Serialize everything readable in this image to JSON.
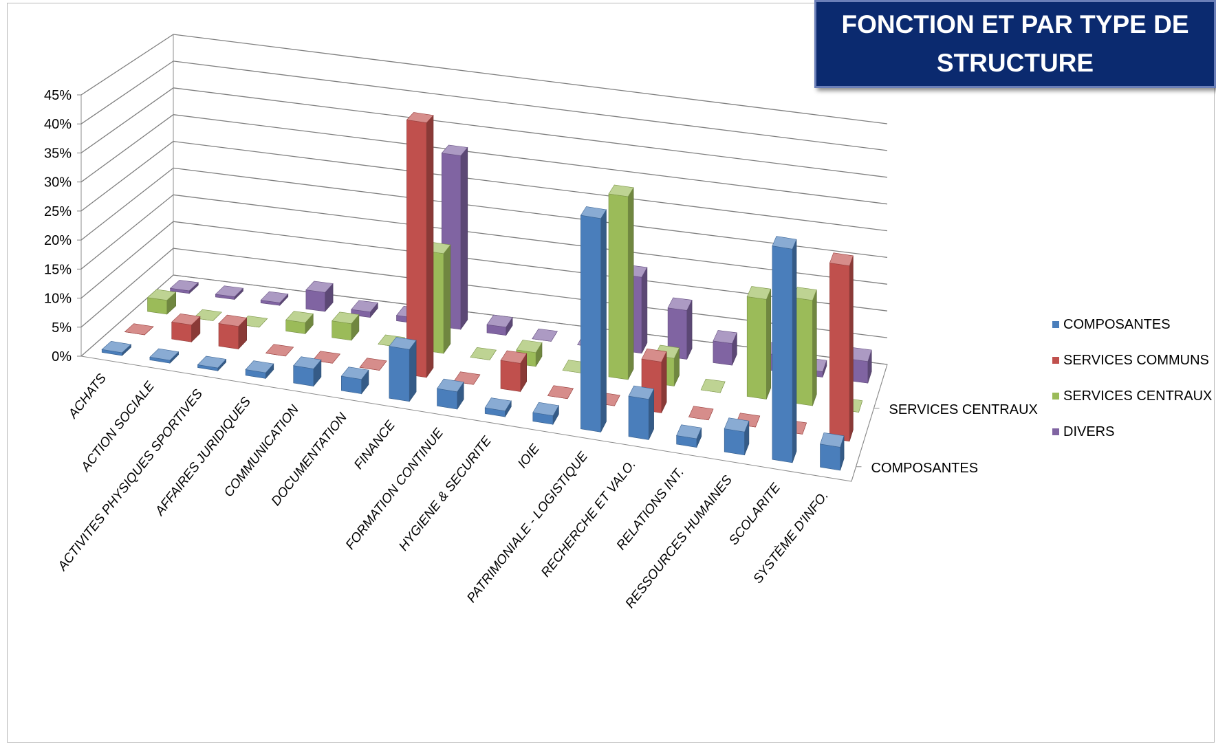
{
  "title": "FONCTION ET PAR TYPE DE\nSTRUCTURE",
  "chart_data": {
    "type": "bar",
    "subtype": "3d-clustered-depth",
    "categories": [
      "ACHATS",
      "ACTION SOCIALE",
      "ACTIVITES PHYSIQUES SPORTIVES",
      "AFFAIRES JURIDIQUES",
      "COMMUNICATION",
      "DOCUMENTATION",
      "FINANCE",
      "FORMATION CONTINUE",
      "HYGIENE & SECURITE",
      "IOIE",
      "PATRIMONIALE - LOGISTIQUE",
      "RECHERCHE ET VALO.",
      "RELATIONS INT.",
      "RESSOURCES HUMAINES",
      "SCOLARITE",
      "SYSTÈME D'INFO."
    ],
    "series": [
      {
        "name": "COMPOSANTES",
        "color": "#4a7ebb",
        "values": [
          0.5,
          0.5,
          0.5,
          1,
          3,
          2.5,
          9,
          3,
          1,
          1.5,
          37,
          7,
          1.5,
          4,
          37,
          4
        ]
      },
      {
        "name": "SERVICES COMMUNS",
        "color": "#c0504d",
        "values": [
          0,
          3,
          4,
          0,
          0,
          0,
          45,
          0,
          5,
          0,
          0,
          9,
          0,
          0,
          0,
          31
        ]
      },
      {
        "name": "SERVICES CENTRAUX",
        "color": "#9bbb59",
        "values": [
          2.5,
          0,
          0,
          2,
          3,
          0,
          18,
          0,
          2.5,
          0,
          33,
          5,
          0,
          18,
          19,
          0
        ]
      },
      {
        "name": "DIVERS",
        "color": "#8064a2",
        "values": [
          0.5,
          0.5,
          0.5,
          3.5,
          1,
          1,
          32,
          1.5,
          0,
          0,
          14,
          9,
          4,
          3,
          1,
          4
        ]
      }
    ],
    "depth_labels": [
      "COMPOSANTES",
      "SERVICES CENTRAUX"
    ],
    "y_ticks": [
      "0%",
      "5%",
      "10%",
      "15%",
      "20%",
      "25%",
      "30%",
      "35%",
      "40%",
      "45%"
    ],
    "ylim": [
      0,
      45
    ],
    "y_unit": "%",
    "grid": true,
    "legend_position": "right"
  }
}
